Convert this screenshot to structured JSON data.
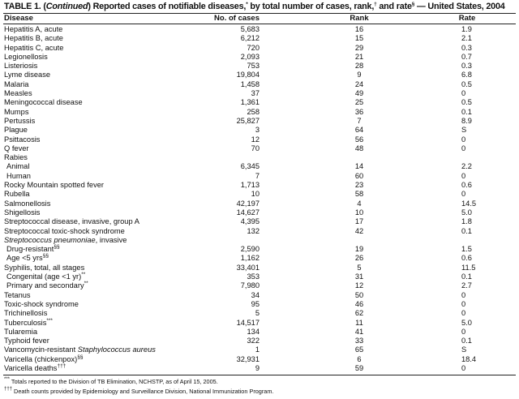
{
  "title": {
    "prefix": "TABLE 1. (",
    "continued": "Continued",
    "text": ") Reported cases of notifiable diseases,",
    "sup1": "*",
    "text2": " by total number of cases, rank,",
    "sup2": "†",
    "text3": " and rate",
    "sup3": "§",
    "text4": " — United States, 2004"
  },
  "headers": {
    "disease": "Disease",
    "cases": "No. of cases",
    "rank": "Rank",
    "rate": "Rate"
  },
  "rows": [
    {
      "parts": [
        {
          "t": "Hepatitis A, acute"
        }
      ],
      "cases": "5,683",
      "rank": "16",
      "rate": "1.9"
    },
    {
      "parts": [
        {
          "t": "Hepatitis B, acute"
        }
      ],
      "cases": "6,212",
      "rank": "15",
      "rate": "2.1"
    },
    {
      "parts": [
        {
          "t": "Hepatitis C, acute"
        }
      ],
      "cases": "720",
      "rank": "29",
      "rate": "0.3"
    },
    {
      "parts": [
        {
          "t": "Legionellosis"
        }
      ],
      "cases": "2,093",
      "rank": "21",
      "rate": "0.7"
    },
    {
      "parts": [
        {
          "t": "Listeriosis"
        }
      ],
      "cases": "753",
      "rank": "28",
      "rate": "0.3"
    },
    {
      "parts": [
        {
          "t": "Lyme disease"
        }
      ],
      "cases": "19,804",
      "rank": "9",
      "rate": "6.8"
    },
    {
      "parts": [
        {
          "t": "Malaria"
        }
      ],
      "cases": "1,458",
      "rank": "24",
      "rate": "0.5"
    },
    {
      "parts": [
        {
          "t": "Measles"
        }
      ],
      "cases": "37",
      "rank": "49",
      "rate": "0"
    },
    {
      "parts": [
        {
          "t": "Meningococcal disease"
        }
      ],
      "cases": "1,361",
      "rank": "25",
      "rate": "0.5"
    },
    {
      "parts": [
        {
          "t": "Mumps"
        }
      ],
      "cases": "258",
      "rank": "36",
      "rate": "0.1"
    },
    {
      "parts": [
        {
          "t": "Pertussis"
        }
      ],
      "cases": "25,827",
      "rank": "7",
      "rate": "8.9"
    },
    {
      "parts": [
        {
          "t": "Plague"
        }
      ],
      "cases": "3",
      "rank": "64",
      "rate": "S"
    },
    {
      "parts": [
        {
          "t": "Psittacosis"
        }
      ],
      "cases": "12",
      "rank": "56",
      "rate": "0"
    },
    {
      "parts": [
        {
          "t": "Q fever"
        }
      ],
      "cases": "70",
      "rank": "48",
      "rate": "0"
    },
    {
      "parts": [
        {
          "t": "Rabies"
        }
      ],
      "cases": "",
      "rank": "",
      "rate": ""
    },
    {
      "indent": true,
      "parts": [
        {
          "t": "Animal"
        }
      ],
      "cases": "6,345",
      "rank": "14",
      "rate": "2.2"
    },
    {
      "indent": true,
      "parts": [
        {
          "t": "Human"
        }
      ],
      "cases": "7",
      "rank": "60",
      "rate": "0"
    },
    {
      "parts": [
        {
          "t": "Rocky Mountain spotted fever"
        }
      ],
      "cases": "1,713",
      "rank": "23",
      "rate": "0.6"
    },
    {
      "parts": [
        {
          "t": "Rubella"
        }
      ],
      "cases": "10",
      "rank": "58",
      "rate": "0"
    },
    {
      "parts": [
        {
          "t": "Salmonellosis"
        }
      ],
      "cases": "42,197",
      "rank": "4",
      "rate": "14.5"
    },
    {
      "parts": [
        {
          "t": "Shigellosis"
        }
      ],
      "cases": "14,627",
      "rank": "10",
      "rate": "5.0"
    },
    {
      "parts": [
        {
          "t": "Streptococcal disease, invasive, group A"
        }
      ],
      "cases": "4,395",
      "rank": "17",
      "rate": "1.8"
    },
    {
      "parts": [
        {
          "t": "Streptococcal toxic-shock syndrome"
        }
      ],
      "cases": "132",
      "rank": "42",
      "rate": "0.1"
    },
    {
      "parts": [
        {
          "t": "Streptococcus pneumoniae",
          "i": true
        },
        {
          "t": ", invasive"
        }
      ],
      "cases": "",
      "rank": "",
      "rate": ""
    },
    {
      "indent": true,
      "parts": [
        {
          "t": "Drug-resistant"
        },
        {
          "t": "§§",
          "sup": true
        }
      ],
      "cases": "2,590",
      "rank": "19",
      "rate": "1.5"
    },
    {
      "indent": true,
      "parts": [
        {
          "t": "Age <5 yrs"
        },
        {
          "t": "§§",
          "sup": true
        }
      ],
      "cases": "1,162",
      "rank": "26",
      "rate": "0.6"
    },
    {
      "parts": [
        {
          "t": "Syphilis, total, all stages"
        }
      ],
      "cases": "33,401",
      "rank": "5",
      "rate": "11.5"
    },
    {
      "indent": true,
      "parts": [
        {
          "t": "Congenital (age <1 yr)"
        },
        {
          "t": "**",
          "sup": true
        }
      ],
      "cases": "353",
      "rank": "31",
      "rate": "0.1"
    },
    {
      "indent": true,
      "parts": [
        {
          "t": "Primary and secondary"
        },
        {
          "t": "**",
          "sup": true
        }
      ],
      "cases": "7,980",
      "rank": "12",
      "rate": "2.7"
    },
    {
      "parts": [
        {
          "t": "Tetanus"
        }
      ],
      "cases": "34",
      "rank": "50",
      "rate": "0"
    },
    {
      "parts": [
        {
          "t": "Toxic-shock syndrome"
        }
      ],
      "cases": "95",
      "rank": "46",
      "rate": "0"
    },
    {
      "parts": [
        {
          "t": "Trichinellosis"
        }
      ],
      "cases": "5",
      "rank": "62",
      "rate": "0"
    },
    {
      "parts": [
        {
          "t": "Tuberculosis"
        },
        {
          "t": "***",
          "sup": true
        }
      ],
      "cases": "14,517",
      "rank": "11",
      "rate": "5.0"
    },
    {
      "parts": [
        {
          "t": "Tularemia"
        }
      ],
      "cases": "134",
      "rank": "41",
      "rate": "0"
    },
    {
      "parts": [
        {
          "t": "Typhoid fever"
        }
      ],
      "cases": "322",
      "rank": "33",
      "rate": "0.1"
    },
    {
      "parts": [
        {
          "t": "Vancomycin-resistant "
        },
        {
          "t": "Staphylococcus aureus",
          "i": true
        }
      ],
      "cases": "1",
      "rank": "65",
      "rate": "S"
    },
    {
      "parts": [
        {
          "t": "Varicella (chickenpox)"
        },
        {
          "t": "§§",
          "sup": true
        }
      ],
      "cases": "32,931",
      "rank": "6",
      "rate": "18.4"
    },
    {
      "parts": [
        {
          "t": "Varicella deaths"
        },
        {
          "t": "†††",
          "sup": true
        }
      ],
      "cases": "9",
      "rank": "59",
      "rate": "0"
    }
  ],
  "footnotes": [
    {
      "mark": "***",
      "text": "Totals reported to the Division of TB Elimination, NCHSTP, as of April 15, 2005."
    },
    {
      "mark": "†††",
      "text": "Death counts provided by Epidemiology and Surveillance Division, National Immunization Program."
    }
  ]
}
